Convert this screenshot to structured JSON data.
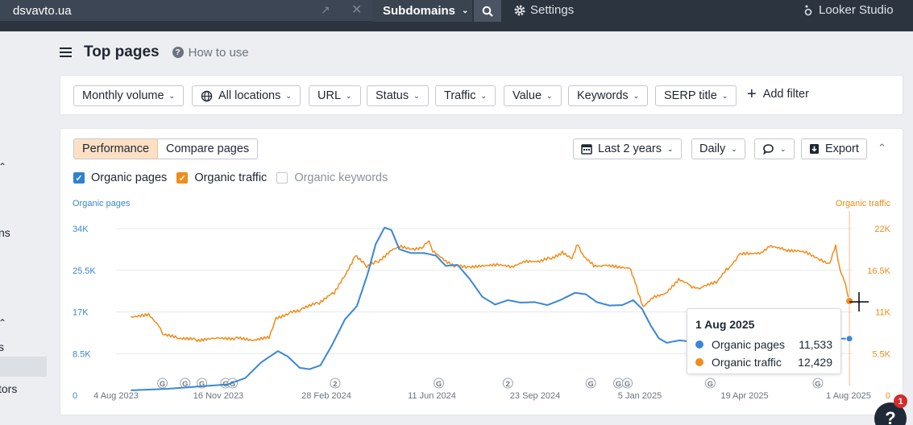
{
  "topbar": {
    "domain": "dsvavto.ua",
    "subdomains_label": "Subdomains",
    "settings_label": "Settings",
    "looker_label": "Looker Studio"
  },
  "left": {
    "fragment_1": "ns",
    "fragment_2": "s",
    "fragment_3": "tors"
  },
  "page": {
    "title": "Top pages",
    "how_to_use": "How to use"
  },
  "filters": [
    "Monthly volume",
    "All locations",
    "URL",
    "Status",
    "Traffic",
    "Value",
    "Keywords",
    "SERP title"
  ],
  "add_filter": "Add filter",
  "panel": {
    "tabs": [
      "Performance",
      "Compare pages"
    ],
    "range": "Last 2 years",
    "granularity": "Daily",
    "export": "Export"
  },
  "legend": {
    "organic_pages": "Organic pages",
    "organic_traffic": "Organic traffic",
    "organic_keywords": "Organic keywords"
  },
  "tooltip": {
    "date": "1 Aug 2025",
    "pages_label": "Organic pages",
    "pages_value": "11,533",
    "traffic_label": "Organic traffic",
    "traffic_value": "12,429"
  },
  "help": {
    "badge": "1",
    "label": "?"
  },
  "colors": {
    "pages": "#3a87d6",
    "traffic": "#f08c1a",
    "crosshair": "#f5c89a"
  },
  "chart_data": {
    "type": "line",
    "left_axis_label": "Organic pages",
    "right_axis_label": "Organic traffic",
    "left_ticks": [
      "0",
      "8.5K",
      "17K",
      "25.5K",
      "34K"
    ],
    "right_ticks": [
      "0",
      "5.5K",
      "11K",
      "16.5K",
      "22K"
    ],
    "left_ylim": [
      0,
      34000
    ],
    "right_ylim": [
      0,
      22000
    ],
    "grid": true,
    "x_ticks": [
      "4 Aug 2023",
      "16 Nov 2023",
      "28 Feb 2024",
      "11 Jun 2024",
      "23 Sep 2024",
      "5 Jan 2025",
      "19 Apr 2025",
      "1 Aug 2025"
    ],
    "xlim": [
      "2023-07-20",
      "2025-08-05"
    ],
    "annotations": [
      {
        "date": "2023-09-05",
        "label": "G"
      },
      {
        "date": "2023-09-28",
        "label": "G"
      },
      {
        "date": "2023-10-15",
        "label": "G"
      },
      {
        "date": "2023-11-08",
        "label": "G"
      },
      {
        "date": "2023-11-15",
        "label": "G"
      },
      {
        "date": "2024-02-27",
        "label": "2"
      },
      {
        "date": "2024-06-11",
        "label": "G"
      },
      {
        "date": "2024-08-20",
        "label": "2"
      },
      {
        "date": "2024-11-12",
        "label": "G"
      },
      {
        "date": "2024-12-10",
        "label": "G"
      },
      {
        "date": "2024-12-19",
        "label": "G"
      },
      {
        "date": "2025-03-13",
        "label": "G"
      },
      {
        "date": "2025-06-30",
        "label": "G"
      }
    ],
    "series": [
      {
        "name": "Organic pages",
        "axis": "left",
        "points": [
          [
            "2023-08-04",
            1000
          ],
          [
            "2023-09-10",
            1300
          ],
          [
            "2023-10-13",
            1800
          ],
          [
            "2023-11-10",
            2200
          ],
          [
            "2023-11-28",
            3500
          ],
          [
            "2023-12-14",
            6700
          ],
          [
            "2023-12-31",
            9000
          ],
          [
            "2024-01-10",
            7900
          ],
          [
            "2024-01-22",
            5600
          ],
          [
            "2024-02-01",
            5300
          ],
          [
            "2024-02-12",
            6100
          ],
          [
            "2024-02-24",
            10300
          ],
          [
            "2024-03-08",
            15500
          ],
          [
            "2024-03-20",
            18200
          ],
          [
            "2024-03-31",
            24800
          ],
          [
            "2024-04-08",
            30800
          ],
          [
            "2024-04-17",
            34200
          ],
          [
            "2024-04-24",
            33700
          ],
          [
            "2024-05-02",
            29800
          ],
          [
            "2024-05-14",
            29000
          ],
          [
            "2024-05-27",
            29000
          ],
          [
            "2024-06-08",
            28500
          ],
          [
            "2024-06-18",
            26400
          ],
          [
            "2024-06-30",
            26600
          ],
          [
            "2024-07-12",
            23800
          ],
          [
            "2024-07-25",
            20100
          ],
          [
            "2024-08-07",
            18500
          ],
          [
            "2024-08-20",
            19400
          ],
          [
            "2024-09-02",
            18900
          ],
          [
            "2024-09-16",
            19000
          ],
          [
            "2024-09-29",
            18400
          ],
          [
            "2024-10-12",
            19400
          ],
          [
            "2024-10-27",
            20900
          ],
          [
            "2024-11-07",
            20600
          ],
          [
            "2024-11-18",
            19000
          ],
          [
            "2024-12-01",
            18300
          ],
          [
            "2024-12-14",
            18400
          ],
          [
            "2024-12-25",
            19400
          ],
          [
            "2025-01-03",
            17600
          ],
          [
            "2025-01-12",
            14100
          ],
          [
            "2025-01-20",
            11600
          ],
          [
            "2025-01-28",
            10700
          ],
          [
            "2025-02-10",
            11200
          ],
          [
            "2025-02-26",
            10800
          ],
          [
            "2025-03-13",
            10300
          ],
          [
            "2025-03-28",
            10600
          ],
          [
            "2025-06-15",
            11300
          ],
          [
            "2025-07-10",
            11600
          ],
          [
            "2025-08-01",
            11533
          ]
        ]
      },
      {
        "name": "Organic traffic",
        "axis": "right",
        "points": [
          [
            "2023-08-04",
            10200
          ],
          [
            "2023-08-22",
            10700
          ],
          [
            "2023-09-01",
            9300
          ],
          [
            "2023-09-05",
            8000
          ],
          [
            "2023-09-20",
            7500
          ],
          [
            "2023-10-10",
            7300
          ],
          [
            "2023-10-29",
            7500
          ],
          [
            "2023-11-18",
            7500
          ],
          [
            "2023-12-06",
            7200
          ],
          [
            "2023-12-22",
            7800
          ],
          [
            "2023-12-29",
            10200
          ],
          [
            "2024-01-13",
            11000
          ],
          [
            "2024-01-25",
            11300
          ],
          [
            "2024-02-11",
            12200
          ],
          [
            "2024-02-26",
            13600
          ],
          [
            "2024-03-07",
            15700
          ],
          [
            "2024-03-18",
            18300
          ],
          [
            "2024-03-30",
            17000
          ],
          [
            "2024-04-11",
            17800
          ],
          [
            "2024-04-24",
            19300
          ],
          [
            "2024-05-04",
            19800
          ],
          [
            "2024-05-16",
            19300
          ],
          [
            "2024-05-28",
            19700
          ],
          [
            "2024-06-01",
            20500
          ],
          [
            "2024-06-05",
            19000
          ],
          [
            "2024-06-18",
            17800
          ],
          [
            "2024-06-30",
            17000
          ],
          [
            "2024-07-12",
            16800
          ],
          [
            "2024-07-25",
            16900
          ],
          [
            "2024-08-09",
            17100
          ],
          [
            "2024-08-24",
            16800
          ],
          [
            "2024-09-08",
            17600
          ],
          [
            "2024-09-21",
            17500
          ],
          [
            "2024-10-03",
            18100
          ],
          [
            "2024-10-14",
            18700
          ],
          [
            "2024-10-24",
            17900
          ],
          [
            "2024-10-30",
            20000
          ],
          [
            "2024-11-05",
            18300
          ],
          [
            "2024-11-15",
            17100
          ],
          [
            "2024-11-26",
            17000
          ],
          [
            "2024-12-09",
            16900
          ],
          [
            "2024-12-21",
            16800
          ],
          [
            "2024-12-30",
            13700
          ],
          [
            "2025-01-04",
            11800
          ],
          [
            "2025-01-14",
            13100
          ],
          [
            "2025-01-27",
            13600
          ],
          [
            "2025-02-09",
            15300
          ],
          [
            "2025-02-21",
            14500
          ],
          [
            "2025-03-04",
            14200
          ],
          [
            "2025-03-19",
            14800
          ],
          [
            "2025-03-31",
            16800
          ],
          [
            "2025-04-11",
            18500
          ],
          [
            "2025-04-21",
            18600
          ],
          [
            "2025-05-02",
            18600
          ],
          [
            "2025-05-12",
            19600
          ],
          [
            "2025-05-28",
            19300
          ],
          [
            "2025-06-10",
            19200
          ],
          [
            "2025-06-20",
            18900
          ],
          [
            "2025-07-02",
            18000
          ],
          [
            "2025-07-12",
            17400
          ],
          [
            "2025-07-18",
            19900
          ],
          [
            "2025-07-22",
            16700
          ],
          [
            "2025-07-28",
            14700
          ],
          [
            "2025-08-01",
            12429
          ]
        ]
      }
    ]
  }
}
